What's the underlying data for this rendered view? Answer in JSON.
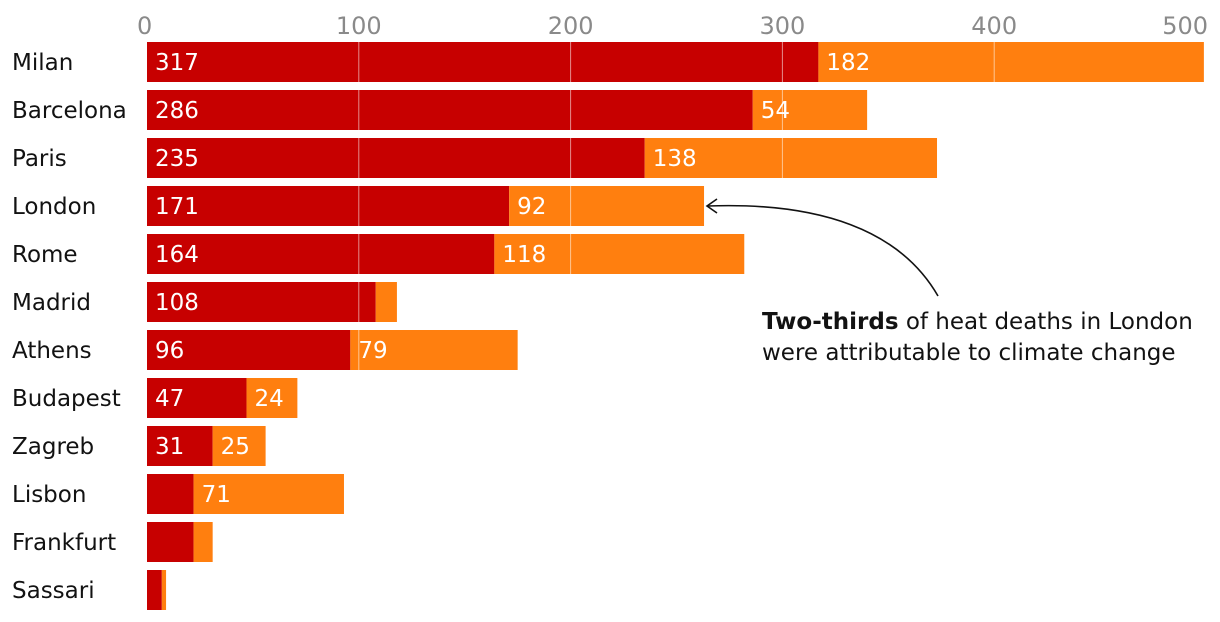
{
  "chart_data": {
    "type": "bar",
    "orientation": "horizontal",
    "stacked": true,
    "categories": [
      "Milan",
      "Barcelona",
      "Paris",
      "London",
      "Rome",
      "Madrid",
      "Athens",
      "Budapest",
      "Zagreb",
      "Lisbon",
      "Frankfurt",
      "Sassari"
    ],
    "series": [
      {
        "color": "#c70000",
        "values": [
          317,
          286,
          235,
          171,
          164,
          108,
          96,
          47,
          31,
          22,
          22,
          7
        ],
        "labels": [
          "317",
          "286",
          "235",
          "171",
          "164",
          "108",
          "96",
          "47",
          "31",
          "",
          "",
          ""
        ]
      },
      {
        "color": "#ff7f0f",
        "values": [
          182,
          54,
          138,
          92,
          118,
          10,
          79,
          24,
          25,
          71,
          9,
          2
        ],
        "labels": [
          "182",
          "54",
          "138",
          "92",
          "118",
          "",
          "79",
          "24",
          "25",
          "71",
          "",
          ""
        ]
      }
    ],
    "xlim": [
      0,
      500
    ],
    "xticks": [
      "0",
      "100",
      "200",
      "300",
      "400",
      "500"
    ],
    "axis_position": "top",
    "grid": true
  },
  "annotation": {
    "bold": "Two-thirds",
    "line1_rest": " of heat deaths in London",
    "line2": "were attributable to climate change",
    "target": "London"
  }
}
